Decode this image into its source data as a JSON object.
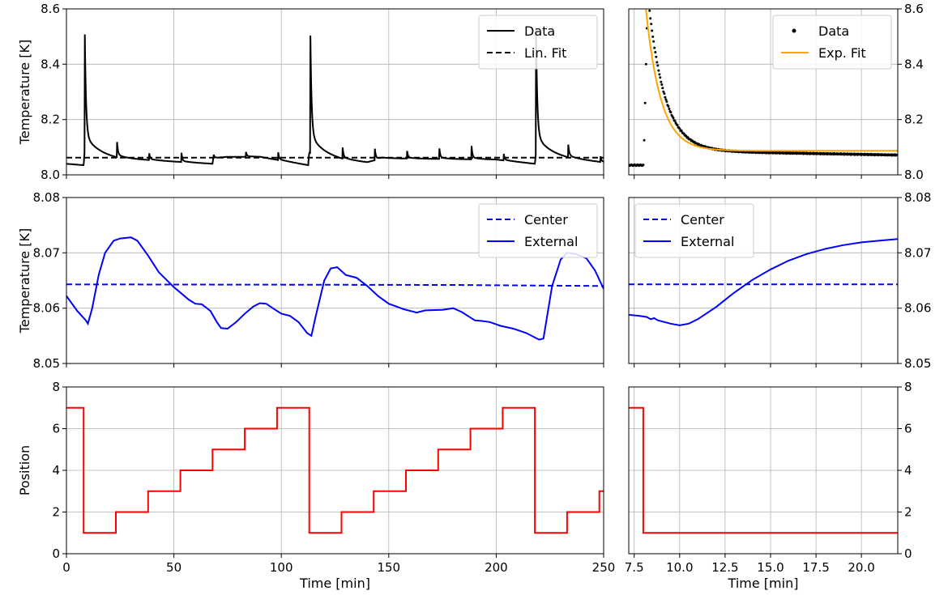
{
  "chart_data": [
    {
      "id": "top_left",
      "type": "line",
      "ylabel": "Temperature [K]",
      "xlabel": "",
      "xlim": [
        0,
        250
      ],
      "ylim": [
        8.0,
        8.6
      ],
      "xticks": [
        0,
        50,
        100,
        150,
        200,
        250
      ],
      "show_xticklabels": false,
      "yticks": [
        8.0,
        8.2,
        8.4,
        8.6
      ],
      "ytick_labels": [
        "8.0",
        "8.2",
        "8.4",
        "8.6"
      ],
      "ytick_side": "left",
      "grid": true,
      "legend_loc": "top-right",
      "series": [
        {
          "name": "Data",
          "color": "#000000",
          "style": "solid",
          "baseline": [
            [
              0,
              8.04
            ],
            [
              8,
              8.035
            ],
            [
              8.4,
              8.08
            ],
            [
              23,
              8.06
            ],
            [
              68,
              8.04
            ],
            [
              68.3,
              8.06
            ],
            [
              75,
              8.065
            ],
            [
              90,
              8.065
            ],
            [
              112.5,
              8.035
            ],
            [
              113,
              8.08
            ],
            [
              128,
              8.055
            ],
            [
              140,
              8.045
            ],
            [
              147,
              8.06
            ],
            [
              200,
              8.055
            ],
            [
              218,
              8.04
            ],
            [
              218.5,
              8.08
            ],
            [
              233,
              8.06
            ],
            [
              250,
              8.045
            ]
          ],
          "spikes": [
            [
              8.5,
              8.545,
              0.45,
              2.2
            ],
            [
              23.5,
              8.12,
              0.06,
              1.8
            ],
            [
              38.5,
              8.08,
              0.03,
              1.5
            ],
            [
              53.5,
              8.085,
              0.03,
              1.5
            ],
            [
              68.5,
              8.075,
              0.01,
              1.5
            ],
            [
              83.5,
              8.085,
              0.02,
              1.5
            ],
            [
              98.5,
              8.085,
              0.03,
              1.5
            ],
            [
              113.5,
              8.54,
              0.45,
              2.2
            ],
            [
              128.5,
              8.1,
              0.04,
              1.6
            ],
            [
              143.5,
              8.1,
              0.04,
              1.6
            ],
            [
              158.5,
              8.09,
              0.03,
              1.5
            ],
            [
              173.5,
              8.1,
              0.04,
              1.6
            ],
            [
              188.5,
              8.11,
              0.05,
              1.6
            ],
            [
              203.5,
              8.08,
              0.02,
              1.5
            ],
            [
              218.5,
              8.57,
              0.45,
              2.2
            ],
            [
              233.5,
              8.11,
              0.05,
              1.7
            ],
            [
              248.5,
              8.07,
              0.02,
              1.5
            ]
          ]
        },
        {
          "name": "Lin. Fit",
          "color": "#000000",
          "style": "dashed",
          "points": [
            [
              0,
              8.062
            ],
            [
              250,
              8.062
            ]
          ]
        }
      ]
    },
    {
      "id": "top_right",
      "type": "scatter",
      "xlabel": "",
      "ylabel": "",
      "xlim": [
        7.2,
        22
      ],
      "ylim": [
        8.0,
        8.6
      ],
      "xticks": [
        7.5,
        10.0,
        12.5,
        15.0,
        17.5,
        20.0
      ],
      "show_xticklabels": false,
      "yticks": [
        8.0,
        8.2,
        8.4,
        8.6
      ],
      "ytick_labels": [
        "8.0",
        "8.2",
        "8.4",
        "8.6"
      ],
      "ytick_side": "right",
      "grid": true,
      "legend_loc": "top-right",
      "series": [
        {
          "name": "Data",
          "color": "#000000",
          "style": "dots",
          "flat": [
            7.2,
            8.0,
            8.035
          ],
          "rise": [
            [
              8.05,
              8.125
            ],
            [
              8.1,
              8.26
            ],
            [
              8.15,
              8.4
            ],
            [
              8.2,
              8.53
            ],
            [
              8.25,
              8.61
            ]
          ],
          "decay": {
            "x0": 8.3,
            "x1": 22,
            "a": 0.53,
            "tau": 0.9,
            "c": 8.088,
            "slope": -0.0012
          }
        },
        {
          "name": "Exp. Fit",
          "color": "#ffa500",
          "style": "solid",
          "curve": {
            "x0": 8.0,
            "x1": 22,
            "a": 0.61,
            "tau": 0.82,
            "c": 8.087
          }
        }
      ]
    },
    {
      "id": "mid_left",
      "type": "line",
      "ylabel": "Temperature [K]",
      "xlabel": "",
      "xlim": [
        0,
        250
      ],
      "ylim": [
        8.05,
        8.08
      ],
      "xticks": [
        0,
        50,
        100,
        150,
        200,
        250
      ],
      "show_xticklabels": false,
      "yticks": [
        8.05,
        8.06,
        8.07,
        8.08
      ],
      "ytick_labels": [
        "8.05",
        "8.06",
        "8.07",
        "8.08"
      ],
      "ytick_side": "left",
      "grid": true,
      "legend_loc": "top-right",
      "series": [
        {
          "name": "Center",
          "color": "#0000ff",
          "style": "dashed",
          "points": [
            [
              0,
              8.0643
            ],
            [
              180,
              8.0642
            ],
            [
              250,
              8.064
            ]
          ]
        },
        {
          "name": "External",
          "color": "#0000ff",
          "style": "solid",
          "points": [
            [
              0,
              8.0622
            ],
            [
              5,
              8.0595
            ],
            [
              9,
              8.0578
            ],
            [
              10,
              8.0572
            ],
            [
              12,
              8.06
            ],
            [
              15,
              8.066
            ],
            [
              18,
              8.07
            ],
            [
              22,
              8.0722
            ],
            [
              25,
              8.0726
            ],
            [
              30,
              8.0728
            ],
            [
              33,
              8.0722
            ],
            [
              38,
              8.0695
            ],
            [
              43,
              8.0665
            ],
            [
              50,
              8.0638
            ],
            [
              57,
              8.0615
            ],
            [
              60,
              8.0608
            ],
            [
              63,
              8.0607
            ],
            [
              67,
              8.0595
            ],
            [
              70,
              8.0575
            ],
            [
              72,
              8.0564
            ],
            [
              75,
              8.0563
            ],
            [
              79,
              8.0575
            ],
            [
              83,
              8.059
            ],
            [
              87,
              8.0603
            ],
            [
              90,
              8.0609
            ],
            [
              93,
              8.0608
            ],
            [
              96,
              8.06
            ],
            [
              100,
              8.059
            ],
            [
              104,
              8.0586
            ],
            [
              108,
              8.0575
            ],
            [
              112,
              8.0555
            ],
            [
              114,
              8.055
            ],
            [
              116,
              8.0585
            ],
            [
              120,
              8.065
            ],
            [
              123,
              8.0672
            ],
            [
              126,
              8.0674
            ],
            [
              130,
              8.066
            ],
            [
              135,
              8.0655
            ],
            [
              140,
              8.064
            ],
            [
              145,
              8.0622
            ],
            [
              150,
              8.0608
            ],
            [
              157,
              8.0598
            ],
            [
              163,
              8.0592
            ],
            [
              167,
              8.0596
            ],
            [
              175,
              8.0597
            ],
            [
              180,
              8.06
            ],
            [
              184,
              8.0593
            ],
            [
              190,
              8.0578
            ],
            [
              193,
              8.0577
            ],
            [
              197,
              8.0575
            ],
            [
              202,
              8.0568
            ],
            [
              208,
              8.0563
            ],
            [
              214,
              8.0555
            ],
            [
              220,
              8.0543
            ],
            [
              222,
              8.0545
            ],
            [
              226,
              8.064
            ],
            [
              230,
              8.0688
            ],
            [
              233,
              8.07
            ],
            [
              237,
              8.0698
            ],
            [
              242,
              8.069
            ],
            [
              246,
              8.0668
            ],
            [
              250,
              8.0635
            ]
          ]
        }
      ]
    },
    {
      "id": "mid_right",
      "type": "line",
      "xlabel": "",
      "ylabel": "",
      "xlim": [
        7.2,
        22
      ],
      "ylim": [
        8.05,
        8.08
      ],
      "xticks": [
        7.5,
        10.0,
        12.5,
        15.0,
        17.5,
        20.0
      ],
      "show_xticklabels": false,
      "yticks": [
        8.05,
        8.06,
        8.07,
        8.08
      ],
      "ytick_labels": [
        "8.05",
        "8.06",
        "8.07",
        "8.08"
      ],
      "ytick_side": "right",
      "grid": true,
      "legend_loc": "top-left",
      "series": [
        {
          "name": "Center",
          "color": "#0000ff",
          "style": "dashed",
          "points": [
            [
              7.2,
              8.0643
            ],
            [
              22,
              8.0643
            ]
          ]
        },
        {
          "name": "External",
          "color": "#0000ff",
          "style": "solid",
          "points": [
            [
              7.2,
              8.0588
            ],
            [
              7.8,
              8.0586
            ],
            [
              8.2,
              8.0584
            ],
            [
              8.4,
              8.058
            ],
            [
              8.6,
              8.0582
            ],
            [
              8.8,
              8.0578
            ],
            [
              9.5,
              8.0572
            ],
            [
              10.0,
              8.0569
            ],
            [
              10.5,
              8.0572
            ],
            [
              11.0,
              8.058
            ],
            [
              12.0,
              8.0602
            ],
            [
              13.0,
              8.0628
            ],
            [
              14.0,
              8.0651
            ],
            [
              15.0,
              8.067
            ],
            [
              16.0,
              8.0686
            ],
            [
              17.0,
              8.0698
            ],
            [
              18.0,
              8.0707
            ],
            [
              19.0,
              8.0714
            ],
            [
              20.0,
              8.0719
            ],
            [
              21.0,
              8.0722
            ],
            [
              22.0,
              8.0725
            ]
          ]
        }
      ]
    },
    {
      "id": "bottom_left",
      "type": "line",
      "ylabel": "Position",
      "xlabel": "Time [min]",
      "xlim": [
        0,
        250
      ],
      "ylim": [
        0,
        8
      ],
      "xticks": [
        0,
        50,
        100,
        150,
        200,
        250
      ],
      "xtick_labels": [
        "0",
        "50",
        "100",
        "150",
        "200",
        "250"
      ],
      "show_xticklabels": true,
      "yticks": [
        0,
        2,
        4,
        6,
        8
      ],
      "ytick_labels": [
        "0",
        "2",
        "4",
        "6",
        "8"
      ],
      "ytick_side": "left",
      "grid": true,
      "series": [
        {
          "name": "",
          "color": "#ff0000",
          "style": "step",
          "edges": [
            0,
            8,
            23,
            38,
            53,
            68,
            83,
            98,
            113,
            128,
            143,
            158,
            173,
            188,
            203,
            218,
            233,
            248,
            250
          ],
          "values": [
            7,
            1,
            2,
            3,
            4,
            5,
            6,
            7,
            1,
            2,
            3,
            4,
            5,
            6,
            7,
            1,
            2,
            3
          ]
        }
      ]
    },
    {
      "id": "bottom_right",
      "type": "line",
      "xlabel": "Time [min]",
      "ylabel": "",
      "xlim": [
        7.2,
        22
      ],
      "ylim": [
        0,
        8
      ],
      "xticks": [
        7.5,
        10.0,
        12.5,
        15.0,
        17.5,
        20.0
      ],
      "xtick_labels": [
        "7.5",
        "10.0",
        "12.5",
        "15.0",
        "17.5",
        "20.0"
      ],
      "show_xticklabels": true,
      "yticks": [
        0,
        2,
        4,
        6,
        8
      ],
      "ytick_labels": [
        "0",
        "2",
        "4",
        "6",
        "8"
      ],
      "ytick_side": "right",
      "grid": true,
      "series": [
        {
          "name": "",
          "color": "#ff0000",
          "style": "step",
          "edges": [
            7.2,
            8.0,
            22
          ],
          "values": [
            7,
            1
          ]
        }
      ]
    }
  ]
}
